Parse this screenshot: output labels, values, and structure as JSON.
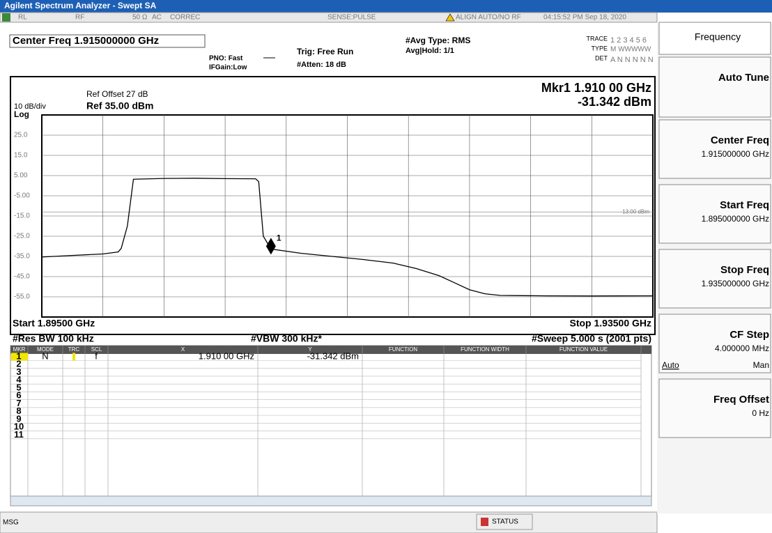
{
  "title_bar": "Agilent Spectrum Analyzer - Swept SA",
  "status_row": {
    "rl": "RL",
    "rf": "RF",
    "impedance": "50 Ω",
    "coupling": "AC",
    "correc": "CORREC",
    "sense": "SENSE:PULSE",
    "align": "ALIGN AUTO/NO RF",
    "datetime": "04:15:52 PM Sep 18, 2020"
  },
  "header": {
    "center_freq": "Center Freq 1.915000000 GHz",
    "pno": "PNO: Fast",
    "ifgain": "IFGain:Low",
    "trig": "Trig: Free Run",
    "atten": "#Atten: 18 dB",
    "avg_type": "#Avg Type: RMS",
    "avg_hold": "Avg|Hold: 1/1",
    "trace_label": "TRACE",
    "trace_nums": "1 2 3 4 5 6",
    "type_label": "TYPE",
    "type_values": "M WWWWW",
    "det_label": "DET",
    "det_values": "A N N N N N"
  },
  "plot": {
    "type": "line",
    "ref_offset": "Ref Offset 27 dB",
    "scale": "10 dB/div",
    "ref_level": "Ref 35.00 dBm",
    "scale_type": "Log",
    "marker_freq": "Mkr1 1.910 00 GHz",
    "marker_level": "-31.342 dBm",
    "marker": {
      "label": "1",
      "x": 1.91,
      "y": -31.342
    },
    "display_line": {
      "value": -13,
      "label": "-13.00 dBm"
    },
    "xlim": [
      1.895,
      1.935
    ],
    "ylim": [
      -65,
      35
    ],
    "yticks": [
      {
        "value": 25,
        "label": "25.0"
      },
      {
        "value": 15,
        "label": "15.0"
      },
      {
        "value": 5,
        "label": "5.00"
      },
      {
        "value": -5,
        "label": "-5.00"
      },
      {
        "value": -15,
        "label": "-15.0"
      },
      {
        "value": -25,
        "label": "-25.0"
      },
      {
        "value": -35,
        "label": "-35.0"
      },
      {
        "value": -45,
        "label": "-45.0"
      },
      {
        "value": -55,
        "label": "-55.0"
      }
    ],
    "color": "#000000",
    "x": [
      1.895,
      1.897,
      1.899,
      1.9,
      1.9002,
      1.9006,
      1.901,
      1.903,
      1.905,
      1.907,
      1.909,
      1.9092,
      1.9095,
      1.91,
      1.912,
      1.914,
      1.916,
      1.918,
      1.9195,
      1.921,
      1.922,
      1.923,
      1.924,
      1.925,
      1.928,
      1.931,
      1.935
    ],
    "values": [
      -35.3,
      -34.5,
      -33.8,
      -32.8,
      -31,
      -20,
      3.2,
      3.6,
      3.7,
      3.5,
      3.4,
      2,
      -25,
      -31.342,
      -33.5,
      -35,
      -36.5,
      -38.3,
      -41,
      -44.5,
      -48,
      -51.5,
      -53.5,
      -54.3,
      -54.5,
      -54.6,
      -54.5
    ],
    "start": "Start 1.89500 GHz",
    "stop": "Stop 1.93500 GHz",
    "rbw": "#Res BW 100 kHz",
    "vbw": "#VBW 300 kHz*",
    "sweep": "#Sweep  5.000 s (2001 pts)"
  },
  "table": {
    "headers": [
      "MKR",
      "MODE",
      "TRC",
      "SCL",
      "X",
      "Y",
      "FUNCTION",
      "FUNCTION WIDTH",
      "FUNCTION VALUE"
    ],
    "rows": [
      [
        "1",
        "N",
        "f",
        "1.910 00 GHz",
        "-31.342 dBm"
      ],
      [
        "2"
      ],
      [
        "3"
      ],
      [
        "4"
      ],
      [
        "5"
      ],
      [
        "6"
      ],
      [
        "7"
      ],
      [
        "8"
      ],
      [
        "9"
      ],
      [
        "10"
      ],
      [
        "11"
      ]
    ]
  },
  "softkeys": {
    "menu": "Frequency",
    "auto_tune": "Auto Tune",
    "center_freq": "Center Freq",
    "center_value": "1.915000000 GHz",
    "start_freq": "Start Freq",
    "start_value": "1.895000000 GHz",
    "stop_freq": "Stop Freq",
    "stop_value": "1.935000000 GHz",
    "cf_step": "CF Step",
    "cf_step_value": "4.000000 MHz",
    "auto": "Auto",
    "man": "Man",
    "freq_offset": "Freq Offset",
    "freq_offset_value": "0 Hz"
  },
  "footer": {
    "msg": "MSG",
    "status": "STATUS"
  }
}
